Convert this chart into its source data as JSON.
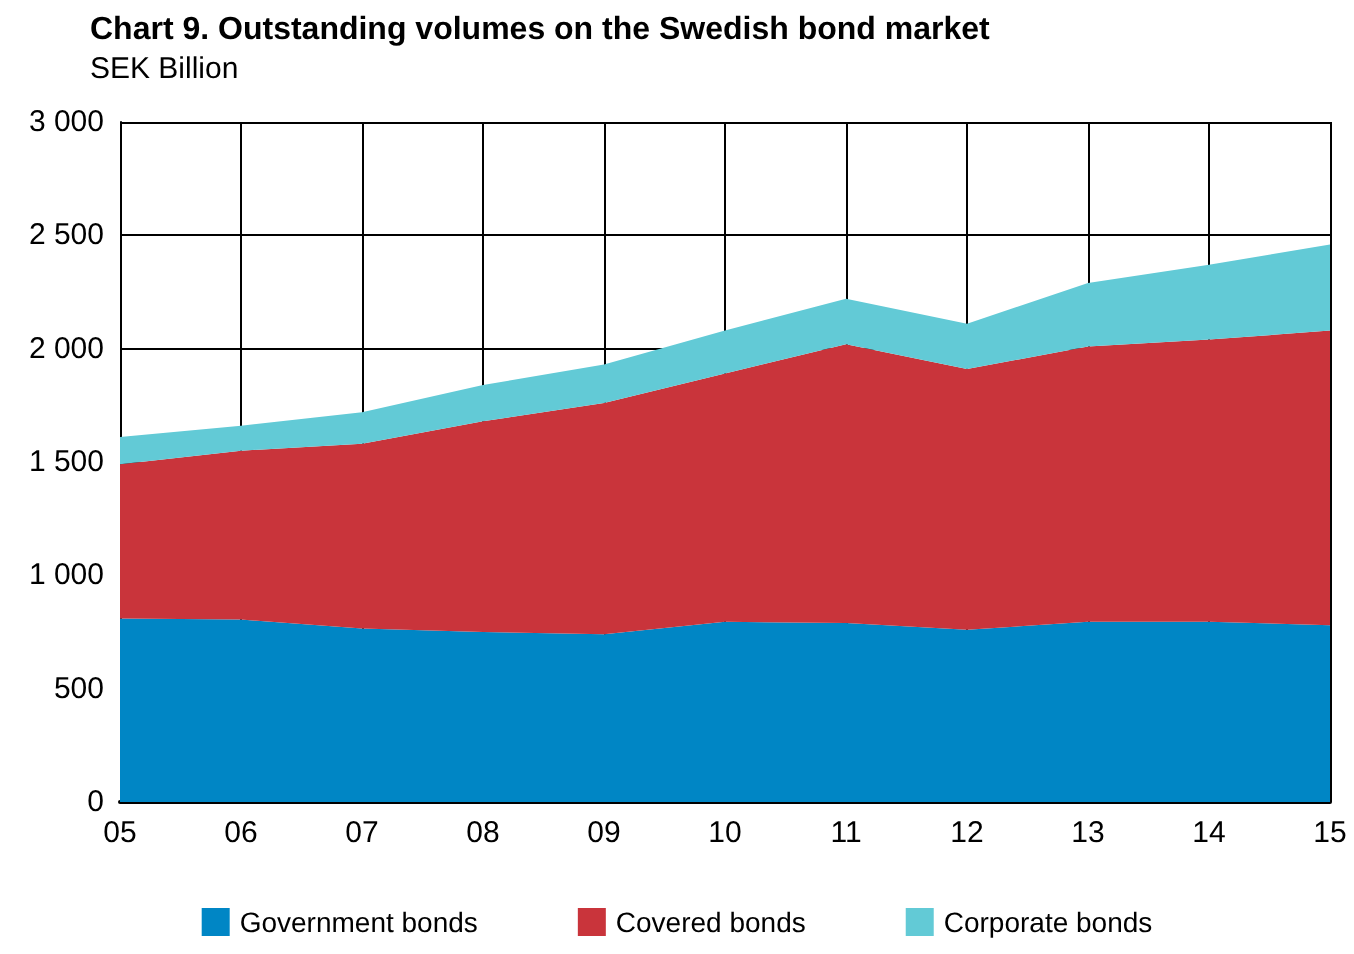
{
  "chart_data": {
    "type": "area",
    "title": "Chart 9. Outstanding volumes on the Swedish bond market",
    "subtitle": "SEK Billion",
    "categories": [
      "05",
      "06",
      "07",
      "08",
      "09",
      "10",
      "11",
      "12",
      "13",
      "14",
      "15"
    ],
    "series": [
      {
        "name": "Government bonds",
        "color": "#0086c5",
        "values": [
          810,
          805,
          765,
          750,
          740,
          795,
          790,
          760,
          795,
          795,
          780
        ]
      },
      {
        "name": "Covered bonds",
        "color": "#c9343b",
        "values": [
          680,
          745,
          815,
          930,
          1020,
          1095,
          1230,
          1150,
          1215,
          1245,
          1300
        ]
      },
      {
        "name": "Corporate bonds",
        "color": "#62cad6",
        "values": [
          120,
          110,
          140,
          160,
          170,
          190,
          200,
          200,
          280,
          330,
          380
        ]
      }
    ],
    "stacked": true,
    "ylim": [
      0,
      3000
    ],
    "yticks": [
      0,
      500,
      {
        "value": 1000,
        "label": "1 000"
      },
      {
        "value": 1500,
        "label": "1 500"
      },
      {
        "value": 2000,
        "label": "2 000"
      },
      {
        "value": 2500,
        "label": "2 500"
      },
      {
        "value": 3000,
        "label": "3 000"
      }
    ],
    "grid": true,
    "legend": "bottom"
  }
}
